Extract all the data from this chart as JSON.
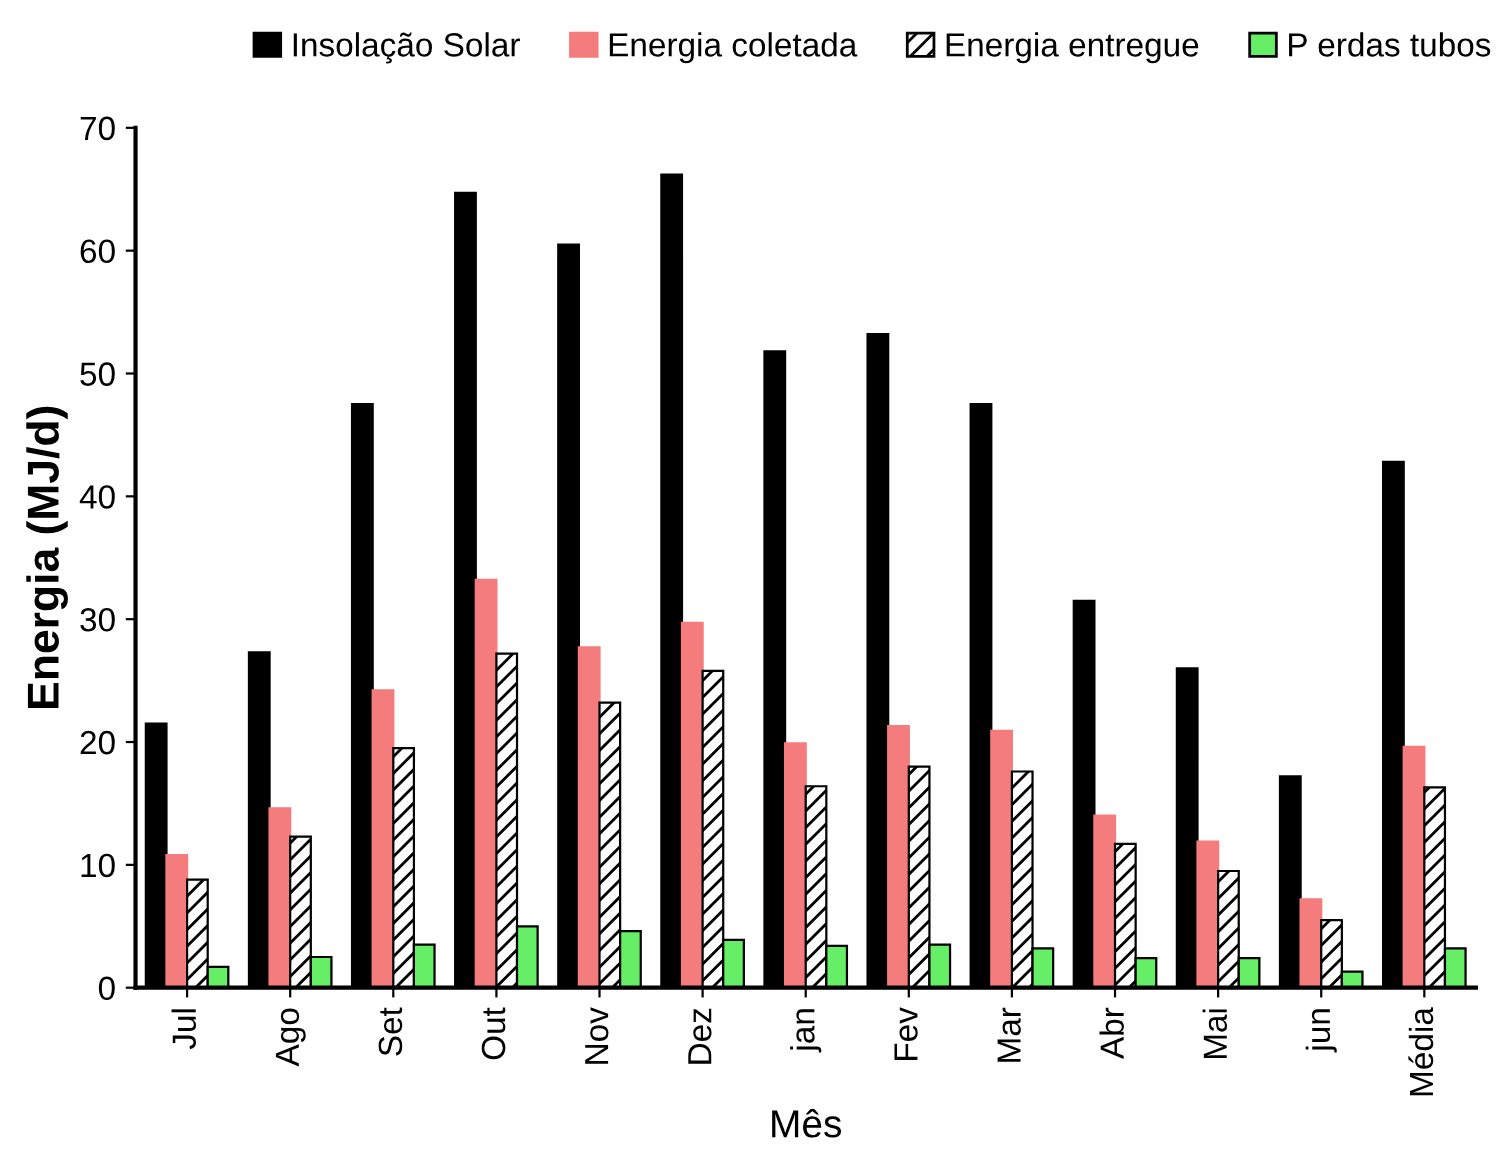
{
  "chart_data": {
    "type": "bar",
    "xlabel": "Mês",
    "ylabel": "Energia (MJ/d)",
    "categories": [
      "Jul",
      "Ago",
      "Set",
      "Out",
      "Nov",
      "Dez",
      "jan",
      "Fev",
      "Mar",
      "Abr",
      "Mai",
      "jun",
      "Média"
    ],
    "series": [
      {
        "name": "Insolação Solar",
        "color": "#000000",
        "values": [
          21.5,
          27.3,
          47.5,
          64.7,
          60.5,
          66.2,
          51.8,
          53.2,
          47.5,
          31.5,
          26.0,
          17.2,
          42.8
        ]
      },
      {
        "name": "Energia coletada",
        "color": "#f47c7c",
        "values": [
          10.8,
          14.6,
          24.2,
          33.2,
          27.7,
          29.7,
          19.9,
          21.3,
          20.9,
          14.0,
          11.9,
          7.2,
          19.6
        ]
      },
      {
        "name": "Energia entregue",
        "color": "#000000",
        "values": [
          8.8,
          12.3,
          19.5,
          27.2,
          23.2,
          25.8,
          16.4,
          18.0,
          17.6,
          11.7,
          9.5,
          5.5,
          16.3
        ]
      },
      {
        "name": "P erdas tubos",
        "color": "#66ee66",
        "values": [
          1.7,
          2.5,
          3.5,
          5.0,
          4.6,
          3.9,
          3.4,
          3.5,
          3.2,
          2.4,
          2.4,
          1.3,
          3.2
        ]
      }
    ],
    "ylim": [
      0,
      70
    ],
    "yticks": [
      0,
      10,
      20,
      30,
      40,
      50,
      60,
      70
    ],
    "grid": false,
    "legend": "top"
  }
}
